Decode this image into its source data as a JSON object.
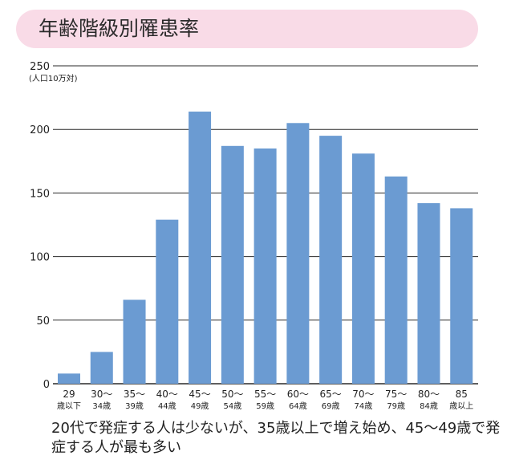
{
  "title": "年齢階級別罹患率",
  "caption": "20代で発症する人は少ないが、35歳以上で増え始め、45～49歳で発症する人が最も多い",
  "colors": {
    "bar": "#6b9bd2",
    "title_bg": "#f9dbe7",
    "grid": "#2a2a2a"
  },
  "chart_data": {
    "type": "bar",
    "title": "",
    "ylabel": "(人口10万対)",
    "xlabel": "",
    "ylim": [
      0,
      250
    ],
    "yticks": [
      0,
      50,
      100,
      150,
      200,
      250
    ],
    "grid": true,
    "categories": [
      [
        "29",
        "歳以下"
      ],
      [
        "30～",
        "34歳"
      ],
      [
        "35～",
        "39歳"
      ],
      [
        "40～",
        "44歳"
      ],
      [
        "45～",
        "49歳"
      ],
      [
        "50～",
        "54歳"
      ],
      [
        "55～",
        "59歳"
      ],
      [
        "60～",
        "64歳"
      ],
      [
        "65～",
        "69歳"
      ],
      [
        "70～",
        "74歳"
      ],
      [
        "75～",
        "79歳"
      ],
      [
        "80～",
        "84歳"
      ],
      [
        "85",
        "歳以上"
      ]
    ],
    "values": [
      8,
      25,
      66,
      129,
      214,
      187,
      185,
      205,
      195,
      181,
      163,
      142,
      138
    ]
  }
}
